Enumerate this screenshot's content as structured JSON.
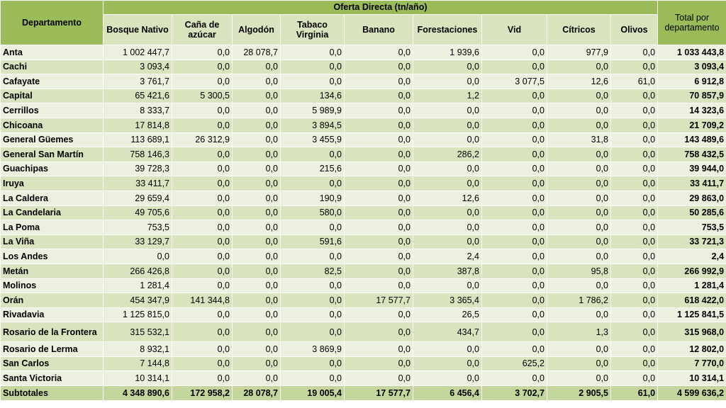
{
  "table": {
    "header_top": "Oferta Directa (tn/año)",
    "dept_label": "Departamento",
    "total_label": "Total por departamento",
    "columns": [
      "Bosque Nativo",
      "Caña de azúcar",
      "Algodón",
      "Tabaco Virginia",
      "Banano",
      "Forestaciones",
      "Vid",
      "Cítricos",
      "Olivos"
    ],
    "rows": [
      {
        "name": "Anta",
        "values": [
          "1 002 447,7",
          "0,0",
          "28 078,7",
          "0,0",
          "0,0",
          "1 939,6",
          "0,0",
          "977,9",
          "0,0"
        ],
        "total": "1 033 443,8"
      },
      {
        "name": "Cachi",
        "values": [
          "3 093,4",
          "0,0",
          "0,0",
          "0,0",
          "0,0",
          "0,0",
          "0,0",
          "0,0",
          "0,0"
        ],
        "total": "3 093,4"
      },
      {
        "name": "Cafayate",
        "values": [
          "3 761,7",
          "0,0",
          "0,0",
          "0,0",
          "0,0",
          "0,0",
          "3 077,5",
          "12,6",
          "61,0"
        ],
        "total": "6 912,8"
      },
      {
        "name": "Capital",
        "values": [
          "65 421,6",
          "5 300,5",
          "0,0",
          "134,6",
          "0,0",
          "1,2",
          "0,0",
          "0,0",
          "0,0"
        ],
        "total": "70 857,9"
      },
      {
        "name": "Cerrillos",
        "values": [
          "8 333,7",
          "0,0",
          "0,0",
          "5 989,9",
          "0,0",
          "0,0",
          "0,0",
          "0,0",
          "0,0"
        ],
        "total": "14 323,6"
      },
      {
        "name": "Chicoana",
        "values": [
          "17 814,8",
          "0,0",
          "0,0",
          "3 894,5",
          "0,0",
          "0,0",
          "0,0",
          "0,0",
          "0,0"
        ],
        "total": "21 709,2"
      },
      {
        "name": "General Güemes",
        "values": [
          "113 689,1",
          "26 312,9",
          "0,0",
          "3 455,9",
          "0,0",
          "0,0",
          "0,0",
          "31,8",
          "0,0"
        ],
        "total": "143 489,6"
      },
      {
        "name": "General San Martín",
        "values": [
          "758 146,3",
          "0,0",
          "0,0",
          "0,0",
          "0,0",
          "286,2",
          "0,0",
          "0,0",
          "0,0"
        ],
        "total": "758 432,5"
      },
      {
        "name": "Guachipas",
        "values": [
          "39 728,3",
          "0,0",
          "0,0",
          "215,6",
          "0,0",
          "0,0",
          "0,0",
          "0,0",
          "0,0"
        ],
        "total": "39 944,0"
      },
      {
        "name": "Iruya",
        "values": [
          "33 411,7",
          "0,0",
          "0,0",
          "0,0",
          "0,0",
          "0,0",
          "0,0",
          "0,0",
          "0,0"
        ],
        "total": "33 411,7"
      },
      {
        "name": "La Caldera",
        "values": [
          "29 659,4",
          "0,0",
          "0,0",
          "190,9",
          "0,0",
          "12,6",
          "0,0",
          "0,0",
          "0,0"
        ],
        "total": "29 863,0"
      },
      {
        "name": "La Candelaria",
        "values": [
          "49 705,6",
          "0,0",
          "0,0",
          "580,0",
          "0,0",
          "0,0",
          "0,0",
          "0,0",
          "0,0"
        ],
        "total": "50 285,6"
      },
      {
        "name": "La Poma",
        "values": [
          "753,5",
          "0,0",
          "0,0",
          "0,0",
          "0,0",
          "0,0",
          "0,0",
          "0,0",
          "0,0"
        ],
        "total": "753,5"
      },
      {
        "name": "La Viña",
        "values": [
          "33 129,7",
          "0,0",
          "0,0",
          "591,6",
          "0,0",
          "0,0",
          "0,0",
          "0,0",
          "0,0"
        ],
        "total": "33 721,3"
      },
      {
        "name": "Los Andes",
        "values": [
          "0,0",
          "0,0",
          "0,0",
          "0,0",
          "0,0",
          "2,4",
          "0,0",
          "0,0",
          "0,0"
        ],
        "total": "2,4"
      },
      {
        "name": "Metán",
        "values": [
          "266 426,8",
          "0,0",
          "0,0",
          "82,5",
          "0,0",
          "387,8",
          "0,0",
          "95,8",
          "0,0"
        ],
        "total": "266 992,9"
      },
      {
        "name": "Molinos",
        "values": [
          "1 281,4",
          "0,0",
          "0,0",
          "0,0",
          "0,0",
          "0,0",
          "0,0",
          "0,0",
          "0,0"
        ],
        "total": "1 281,4"
      },
      {
        "name": "Orán",
        "values": [
          "454 347,9",
          "141 344,8",
          "0,0",
          "0,0",
          "17 577,7",
          "3 365,4",
          "0,0",
          "1 786,2",
          "0,0"
        ],
        "total": "618 422,0"
      },
      {
        "name": "Rivadavia",
        "values": [
          "1 125 815,0",
          "0,0",
          "0,0",
          "0,0",
          "0,0",
          "26,5",
          "0,0",
          "0,0",
          "0,0"
        ],
        "total": "1 125 841,5"
      },
      {
        "name": "Rosario de la Frontera",
        "values": [
          "315 532,1",
          "0,0",
          "0,0",
          "0,0",
          "0,0",
          "434,7",
          "0,0",
          "1,3",
          "0,0"
        ],
        "total": "315 968,0"
      },
      {
        "name": "Rosario de Lerma",
        "values": [
          "8 932,1",
          "0,0",
          "0,0",
          "3 869,9",
          "0,0",
          "0,0",
          "0,0",
          "0,0",
          "0,0"
        ],
        "total": "12 802,0"
      },
      {
        "name": "San Carlos",
        "values": [
          "7 144,8",
          "0,0",
          "0,0",
          "0,0",
          "0,0",
          "0,0",
          "625,2",
          "0,0",
          "0,0"
        ],
        "total": "7 770,0"
      },
      {
        "name": "Santa Victoria",
        "values": [
          "10 314,1",
          "0,0",
          "0,0",
          "0,0",
          "0,0",
          "0,0",
          "0,0",
          "0,0",
          "0,0"
        ],
        "total": "10 314,1"
      }
    ],
    "subtotal": {
      "name": "Subtotales",
      "values": [
        "4 348 890,6",
        "172 958,2",
        "28 078,7",
        "19 005,4",
        "17 577,7",
        "6 456,4",
        "3 702,7",
        "2 905,5",
        "61,0"
      ],
      "total": "4 599 636,2"
    },
    "colors": {
      "header": "#9bbb59",
      "subheader": "#d7e4bd",
      "row_light": "#ebf1de",
      "row_dark": "#d7e4bd",
      "subtotal": "#c3d69b"
    }
  }
}
